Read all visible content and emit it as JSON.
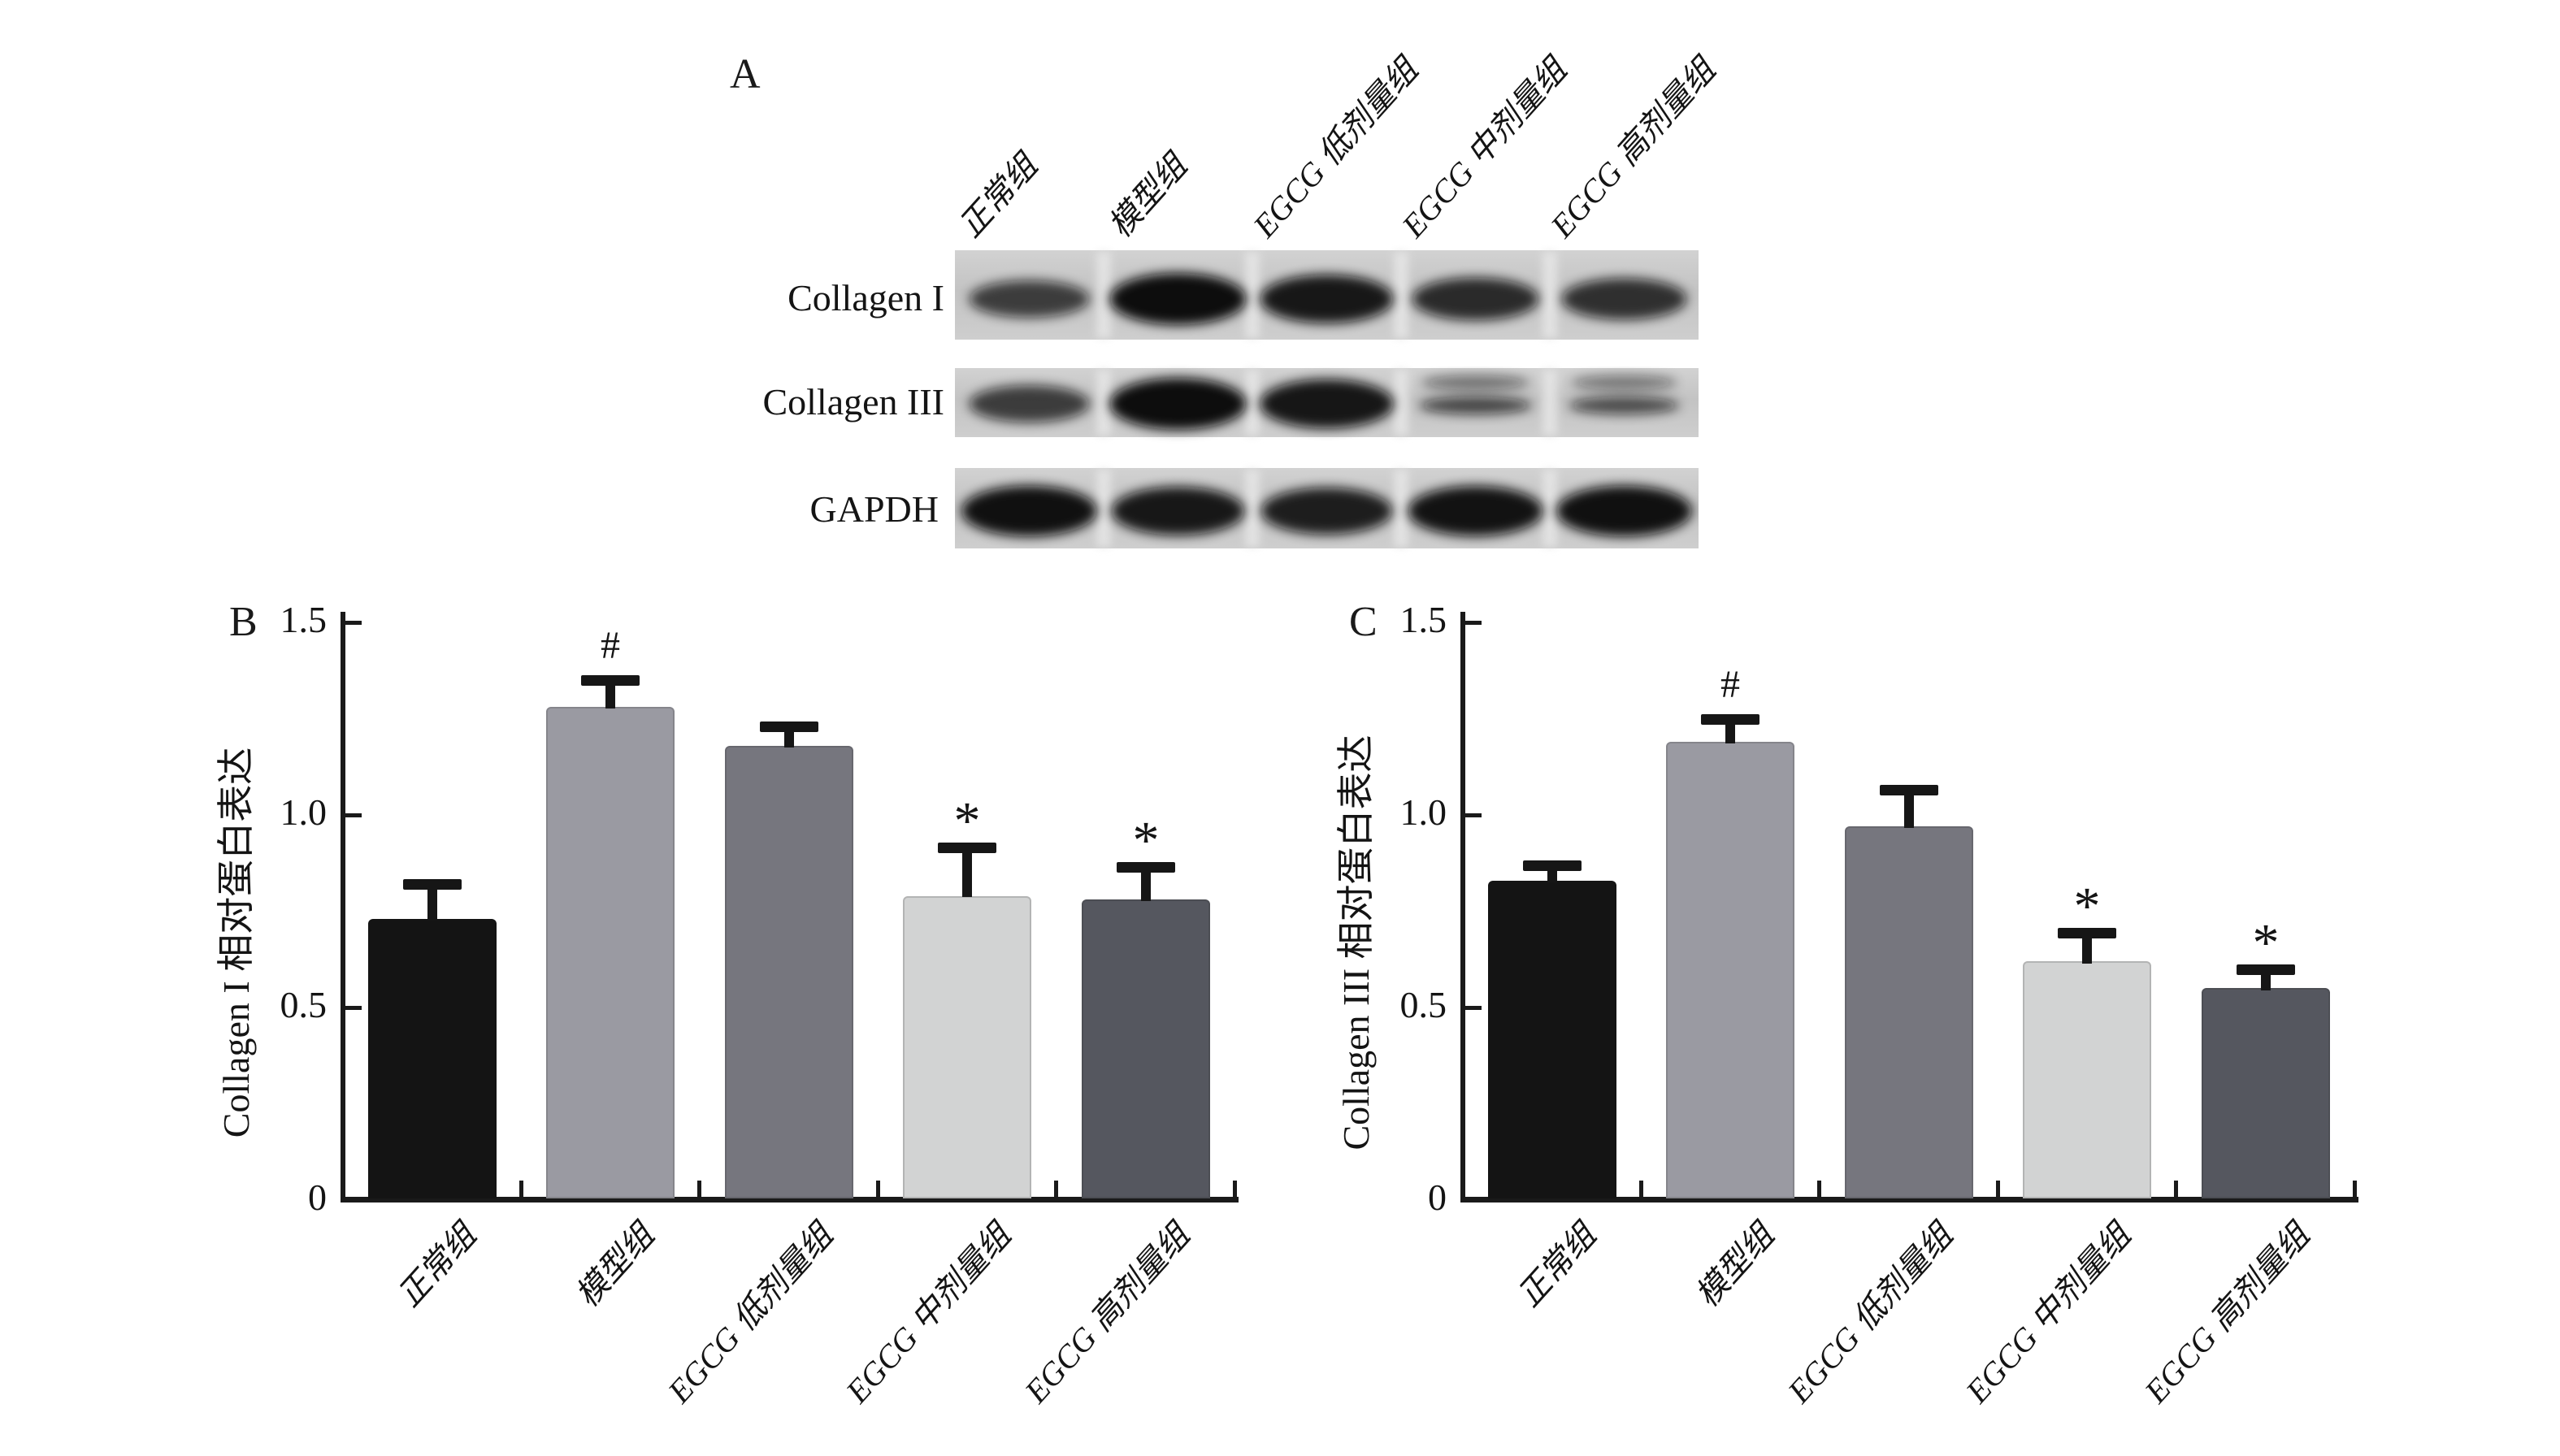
{
  "panelA": {
    "label": "A",
    "lane_labels": [
      "正常组",
      "模型组",
      "EGCG 低剂量组",
      "EGCG 中剂量组",
      "EGCG 高剂量组"
    ],
    "rows": [
      {
        "label": "Collagen I",
        "band_strengths": [
          0.55,
          1.0,
          0.9,
          0.72,
          0.68
        ]
      },
      {
        "label": "Collagen III",
        "band_strengths": [
          0.55,
          1.0,
          0.92,
          0.42,
          0.36
        ]
      },
      {
        "label": "GAPDH",
        "band_strengths": [
          0.97,
          0.9,
          0.85,
          0.95,
          0.97
        ]
      }
    ]
  },
  "chart_data": [
    {
      "type": "bar",
      "panel_label": "B",
      "title": "",
      "xlabel": "",
      "ylabel": "Collagen I 相对蛋白表达",
      "categories": [
        "正常组",
        "模型组",
        "EGCG 低剂量组",
        "EGCG 中剂量组",
        "EGCG 高剂量组"
      ],
      "values": [
        0.73,
        1.28,
        1.18,
        0.79,
        0.78
      ],
      "errors": [
        0.09,
        0.07,
        0.05,
        0.125,
        0.085
      ],
      "sig_markers": [
        "",
        "#",
        "",
        "*",
        "*"
      ],
      "ylim": [
        0,
        1.5
      ],
      "yticks": [
        {
          "v": 0,
          "label": "0"
        },
        {
          "v": 0.5,
          "label": "0.5"
        },
        {
          "v": 1.0,
          "label": "1.0"
        },
        {
          "v": 1.5,
          "label": "1.5"
        }
      ],
      "bar_colors": [
        "#141414",
        "#9a9aa2",
        "#76767e",
        "#d2d3d3",
        "#55575f"
      ],
      "grid": false,
      "legend": "none"
    },
    {
      "type": "bar",
      "panel_label": "C",
      "title": "",
      "xlabel": "",
      "ylabel": "Collagen III 相对蛋白表达",
      "categories": [
        "正常组",
        "模型组",
        "EGCG 低剂量组",
        "EGCG 中剂量组",
        "EGCG 高剂量组"
      ],
      "values": [
        0.83,
        1.19,
        0.97,
        0.62,
        0.55
      ],
      "errors": [
        0.04,
        0.06,
        0.095,
        0.075,
        0.05
      ],
      "sig_markers": [
        "",
        "#",
        "",
        "*",
        "*"
      ],
      "ylim": [
        0,
        1.5
      ],
      "yticks": [
        {
          "v": 0,
          "label": "0"
        },
        {
          "v": 0.5,
          "label": "0.5"
        },
        {
          "v": 1.0,
          "label": "1.0"
        },
        {
          "v": 1.5,
          "label": "1.5"
        }
      ],
      "bar_colors": [
        "#141414",
        "#9a9aa2",
        "#76767e",
        "#d2d3d3",
        "#55575f"
      ],
      "grid": false,
      "legend": "none"
    }
  ]
}
